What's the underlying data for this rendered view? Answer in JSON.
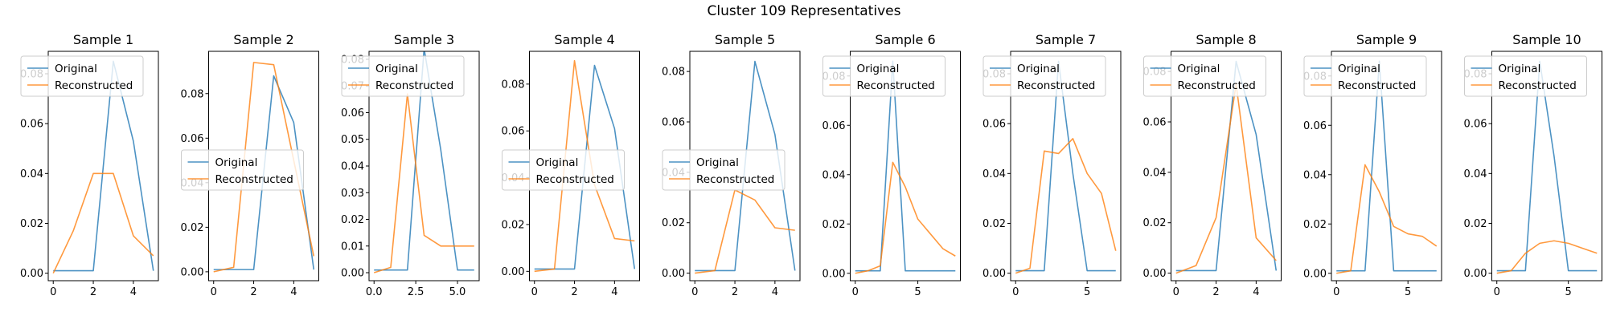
{
  "figure": {
    "title": "Cluster 109 Representatives",
    "colors": {
      "original": "#1f77b4",
      "reconstructed": "#ff7f0e"
    },
    "legend": {
      "original": "Original",
      "reconstructed": "Reconstructed"
    }
  },
  "chart_data": [
    {
      "type": "line",
      "title": "Sample 1",
      "x": [
        0,
        1,
        2,
        3,
        4,
        5
      ],
      "series": [
        {
          "name": "Original",
          "values": [
            0.001,
            0.001,
            0.001,
            0.085,
            0.053,
            0.001
          ]
        },
        {
          "name": "Reconstructed",
          "values": [
            0.0,
            0.017,
            0.04,
            0.04,
            0.015,
            0.007
          ]
        }
      ],
      "xlim": [
        -0.25,
        5.25
      ],
      "ylim": [
        -0.003,
        0.089
      ],
      "xticks": [
        0,
        2,
        4
      ],
      "yticks": [
        0.0,
        0.02,
        0.04,
        0.06,
        0.08
      ],
      "ytick_labels": [
        "0.00",
        "0.02",
        "0.04",
        "0.06",
        "0.08"
      ],
      "legend": "upper-left"
    },
    {
      "type": "line",
      "title": "Sample 2",
      "x": [
        0,
        1,
        2,
        3,
        4,
        5
      ],
      "series": [
        {
          "name": "Original",
          "values": [
            0.001,
            0.001,
            0.001,
            0.088,
            0.067,
            0.001
          ]
        },
        {
          "name": "Reconstructed",
          "values": [
            0.0,
            0.002,
            0.094,
            0.093,
            0.05,
            0.007
          ]
        }
      ],
      "xlim": [
        -0.25,
        5.25
      ],
      "ylim": [
        -0.004,
        0.099
      ],
      "xticks": [
        0,
        2,
        4
      ],
      "yticks": [
        0.0,
        0.02,
        0.04,
        0.06,
        0.08
      ],
      "ytick_labels": [
        "0.00",
        "0.02",
        "0.04",
        "0.06",
        "0.08"
      ],
      "legend": "center-left"
    },
    {
      "type": "line",
      "title": "Sample 3",
      "x": [
        0,
        1,
        2,
        3,
        4,
        5,
        6
      ],
      "series": [
        {
          "name": "Original",
          "values": [
            0.001,
            0.001,
            0.001,
            0.084,
            0.046,
            0.001,
            0.001
          ]
        },
        {
          "name": "Reconstructed",
          "values": [
            0.0,
            0.002,
            0.067,
            0.014,
            0.01,
            0.01,
            0.01
          ]
        }
      ],
      "xlim": [
        -0.3,
        6.3
      ],
      "ylim": [
        -0.003,
        0.083
      ],
      "xticks": [
        0.0,
        2.5,
        5.0
      ],
      "xtick_labels": [
        "0.0",
        "2.5",
        "5.0"
      ],
      "yticks": [
        0.0,
        0.01,
        0.02,
        0.03,
        0.04,
        0.05,
        0.06,
        0.07,
        0.08
      ],
      "ytick_labels": [
        "0.00",
        "0.01",
        "0.02",
        "0.03",
        "0.04",
        "0.05",
        "0.06",
        "0.07",
        "0.08"
      ],
      "legend": "upper-left"
    },
    {
      "type": "line",
      "title": "Sample 4",
      "x": [
        0,
        1,
        2,
        3,
        4,
        5
      ],
      "series": [
        {
          "name": "Original",
          "values": [
            0.001,
            0.001,
            0.001,
            0.088,
            0.061,
            0.001
          ]
        },
        {
          "name": "Reconstructed",
          "values": [
            0.0,
            0.001,
            0.09,
            0.037,
            0.014,
            0.013
          ]
        }
      ],
      "xlim": [
        -0.25,
        5.25
      ],
      "ylim": [
        -0.004,
        0.094
      ],
      "xticks": [
        0,
        2,
        4
      ],
      "yticks": [
        0.0,
        0.02,
        0.04,
        0.06,
        0.08
      ],
      "ytick_labels": [
        "0.00",
        "0.02",
        "0.04",
        "0.06",
        "0.08"
      ],
      "legend": "center-left"
    },
    {
      "type": "line",
      "title": "Sample 5",
      "x": [
        0,
        1,
        2,
        3,
        4,
        5
      ],
      "series": [
        {
          "name": "Original",
          "values": [
            0.001,
            0.001,
            0.001,
            0.084,
            0.055,
            0.001
          ]
        },
        {
          "name": "Reconstructed",
          "values": [
            0.0,
            0.001,
            0.033,
            0.029,
            0.018,
            0.017
          ]
        }
      ],
      "xlim": [
        -0.25,
        5.25
      ],
      "ylim": [
        -0.003,
        0.088
      ],
      "xticks": [
        0,
        2,
        4
      ],
      "yticks": [
        0.0,
        0.02,
        0.04,
        0.06,
        0.08
      ],
      "ytick_labels": [
        "0.00",
        "0.02",
        "0.04",
        "0.06",
        "0.08"
      ],
      "legend": "center-left"
    },
    {
      "type": "line",
      "title": "Sample 6",
      "x": [
        0,
        1,
        2,
        3,
        4,
        5,
        6,
        7,
        8
      ],
      "series": [
        {
          "name": "Original",
          "values": [
            0.001,
            0.001,
            0.001,
            0.086,
            0.001,
            0.001,
            0.001,
            0.001,
            0.001
          ]
        },
        {
          "name": "Reconstructed",
          "values": [
            0.0,
            0.001,
            0.003,
            0.045,
            0.035,
            0.022,
            0.016,
            0.01,
            0.007
          ]
        }
      ],
      "xlim": [
        -0.4,
        8.4
      ],
      "ylim": [
        -0.003,
        0.09
      ],
      "xticks": [
        0,
        5
      ],
      "yticks": [
        0.0,
        0.02,
        0.04,
        0.06,
        0.08
      ],
      "ytick_labels": [
        "0.00",
        "0.02",
        "0.04",
        "0.06",
        "0.08"
      ],
      "legend": "upper-left"
    },
    {
      "type": "line",
      "title": "Sample 7",
      "x": [
        0,
        1,
        2,
        3,
        4,
        5,
        6,
        7
      ],
      "series": [
        {
          "name": "Original",
          "values": [
            0.001,
            0.001,
            0.001,
            0.085,
            0.04,
            0.001,
            0.001,
            0.001
          ]
        },
        {
          "name": "Reconstructed",
          "values": [
            0.0,
            0.002,
            0.049,
            0.048,
            0.054,
            0.04,
            0.032,
            0.009
          ]
        }
      ],
      "xlim": [
        -0.35,
        7.35
      ],
      "ylim": [
        -0.003,
        0.089
      ],
      "xticks": [
        0,
        5
      ],
      "yticks": [
        0.0,
        0.02,
        0.04,
        0.06,
        0.08
      ],
      "ytick_labels": [
        "0.00",
        "0.02",
        "0.04",
        "0.06",
        "0.08"
      ],
      "legend": "upper-left"
    },
    {
      "type": "line",
      "title": "Sample 8",
      "x": [
        0,
        1,
        2,
        3,
        4,
        5
      ],
      "series": [
        {
          "name": "Original",
          "values": [
            0.001,
            0.001,
            0.001,
            0.084,
            0.055,
            0.001
          ]
        },
        {
          "name": "Reconstructed",
          "values": [
            0.0,
            0.003,
            0.022,
            0.075,
            0.014,
            0.005
          ]
        }
      ],
      "xlim": [
        -0.25,
        5.25
      ],
      "ylim": [
        -0.003,
        0.088
      ],
      "xticks": [
        0,
        2,
        4
      ],
      "yticks": [
        0.0,
        0.02,
        0.04,
        0.06,
        0.08
      ],
      "ytick_labels": [
        "0.00",
        "0.02",
        "0.04",
        "0.06",
        "0.08"
      ],
      "legend": "upper-left"
    },
    {
      "type": "line",
      "title": "Sample 9",
      "x": [
        0,
        1,
        2,
        3,
        4,
        5,
        6,
        7
      ],
      "series": [
        {
          "name": "Original",
          "values": [
            0.001,
            0.001,
            0.001,
            0.086,
            0.001,
            0.001,
            0.001,
            0.001
          ]
        },
        {
          "name": "Reconstructed",
          "values": [
            0.0,
            0.001,
            0.044,
            0.033,
            0.019,
            0.016,
            0.015,
            0.011
          ]
        }
      ],
      "xlim": [
        -0.35,
        7.35
      ],
      "ylim": [
        -0.003,
        0.09
      ],
      "xticks": [
        0,
        5
      ],
      "yticks": [
        0.0,
        0.02,
        0.04,
        0.06,
        0.08
      ],
      "ytick_labels": [
        "0.00",
        "0.02",
        "0.04",
        "0.06",
        "0.08"
      ],
      "legend": "upper-left"
    },
    {
      "type": "line",
      "title": "Sample 10",
      "x": [
        0,
        1,
        2,
        3,
        4,
        5,
        6,
        7
      ],
      "series": [
        {
          "name": "Original",
          "values": [
            0.001,
            0.001,
            0.001,
            0.085,
            0.047,
            0.001,
            0.001,
            0.001
          ]
        },
        {
          "name": "Reconstructed",
          "values": [
            0.0,
            0.001,
            0.008,
            0.012,
            0.013,
            0.012,
            0.01,
            0.008
          ]
        }
      ],
      "xlim": [
        -0.35,
        7.35
      ],
      "ylim": [
        -0.003,
        0.089
      ],
      "xticks": [
        0,
        5
      ],
      "yticks": [
        0.0,
        0.02,
        0.04,
        0.06,
        0.08
      ],
      "ytick_labels": [
        "0.00",
        "0.02",
        "0.04",
        "0.06",
        "0.08"
      ],
      "legend": "upper-left"
    }
  ]
}
